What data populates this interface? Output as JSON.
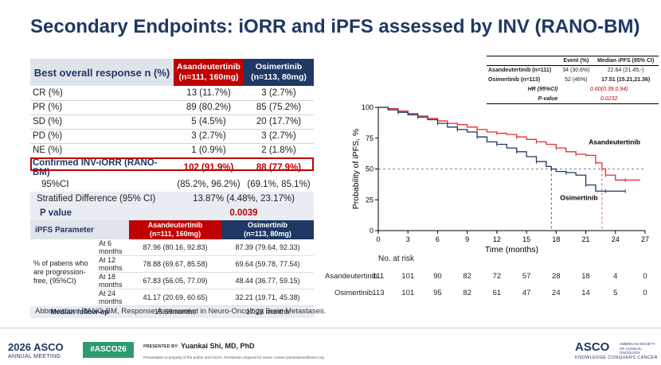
{
  "title": "Secondary Endpoints: iORR and iPFS assessed by INV (RANO-BM)",
  "orr_table": {
    "header_label": "Best overall response n (%)",
    "col1": [
      "Asandeutertinib",
      "(n=111, 160mg)"
    ],
    "col2": [
      "Osimertinib",
      "(n=113, 80mg)"
    ],
    "rows": [
      {
        "label": "CR (%)",
        "a": "13 (11.7%)",
        "b": "3 (2.7%)"
      },
      {
        "label": "PR (%)",
        "a": "89 (80.2%)",
        "b": "85 (75.2%)"
      },
      {
        "label": "SD (%)",
        "a": "5 (4.5%)",
        "b": "20 (17.7%)"
      },
      {
        "label": "PD (%)",
        "a": "3 (2.7%)",
        "b": "3 (2.7%)"
      },
      {
        "label": "NE (%)",
        "a": "1 (0.9%)",
        "b": "2 (1.8%)"
      }
    ],
    "inv_row": {
      "label": "Confirmed INV-iORR (RANO-BM)",
      "a": "102 (91.9%)",
      "b": "88 (77.9%)"
    },
    "ci_row": {
      "label": "95%CI",
      "a": "(85.2%, 96.2%)",
      "b": "(69.1%, 85.1%)"
    },
    "diff_row": {
      "label": "Stratified Difference (95% CI)",
      "value": "13.87% (4.48%, 23.17%)"
    },
    "p_row": {
      "label": "P value",
      "value": "0.0039"
    }
  },
  "ipfs_table": {
    "header_label": "iPFS Parameter",
    "col1": [
      "Asandeutertinib",
      "(n=111, 160mg)"
    ],
    "col2": [
      "Osimertinib",
      "(n=113, 80mg)"
    ],
    "group_label": "% of patiens who are progression-free, (95%CI)",
    "rows": [
      {
        "time": "At 6 months",
        "a": "87.96 (80.16, 92.83)",
        "b": "87.39 (79.64, 92.33)"
      },
      {
        "time": "At 12 months",
        "a": "78.88 (69.67, 85.58)",
        "b": "69.64 (59.78, 77.54)"
      },
      {
        "time": "At 18 months",
        "a": "67.83 (56.05, 77.09)",
        "b": "48.44 (36.77, 59.15)"
      },
      {
        "time": "At 24 months",
        "a": "41.17 (20.69, 60.65)",
        "b": "32.21 (19.71, 45.38)"
      }
    ],
    "followup": {
      "label": "Median follow-up",
      "a": "16.69months",
      "b": "17.28 months"
    }
  },
  "abbreviation": "Abbreviation: RANO-BM, Response Assessment in Neuro-Oncology Brain Metastases.",
  "stats_table": {
    "headers": [
      "",
      "Event (%)",
      "Median iPFS (95% CI)"
    ],
    "rows": [
      {
        "label": "Asandeutertinib (n=111)",
        "event": "34 (30.6%)",
        "median": "22.64 (21.45,-)"
      },
      {
        "label": "Osimertinib (n=113)",
        "event": "52 (46%)",
        "median": "17.51 (15.21,21.36)"
      }
    ],
    "hr": {
      "label": "HR (95%CI)",
      "value": "0.60(0.39,0.94)"
    },
    "p": {
      "label": "P-value",
      "value": "0.0232"
    }
  },
  "chart_data": {
    "type": "line",
    "xlabel": "Time (months)",
    "ylabel": "Probability of iPFS, %",
    "xlim": [
      0,
      27
    ],
    "ylim": [
      0,
      100
    ],
    "x_ticks": [
      0,
      3,
      6,
      9,
      12,
      15,
      18,
      21,
      24,
      27
    ],
    "y_ticks": [
      0,
      25,
      50,
      75,
      100
    ],
    "reference_y": 50,
    "series": [
      {
        "name": "Asandeutertinib",
        "color": "#e03030",
        "median": 22.64,
        "points": [
          [
            0,
            100
          ],
          [
            1,
            99
          ],
          [
            2,
            97
          ],
          [
            3,
            95
          ],
          [
            4,
            93
          ],
          [
            5,
            91
          ],
          [
            6,
            89
          ],
          [
            7,
            87
          ],
          [
            8,
            86
          ],
          [
            9,
            84
          ],
          [
            10,
            82
          ],
          [
            11,
            80
          ],
          [
            12,
            79
          ],
          [
            13,
            78
          ],
          [
            14,
            76
          ],
          [
            15,
            74
          ],
          [
            16,
            72
          ],
          [
            17,
            70
          ],
          [
            18,
            67
          ],
          [
            19,
            64
          ],
          [
            20,
            62
          ],
          [
            21,
            61
          ],
          [
            22,
            55
          ],
          [
            22.64,
            50
          ],
          [
            23,
            45
          ],
          [
            24,
            41
          ],
          [
            25,
            41
          ],
          [
            26.5,
            41
          ]
        ]
      },
      {
        "name": "Osimertinib",
        "color": "#1f3864",
        "median": 17.51,
        "points": [
          [
            0,
            100
          ],
          [
            1,
            98
          ],
          [
            2,
            96
          ],
          [
            3,
            94
          ],
          [
            4,
            92
          ],
          [
            5,
            90
          ],
          [
            6,
            87
          ],
          [
            7,
            84
          ],
          [
            8,
            82
          ],
          [
            9,
            80
          ],
          [
            10,
            76
          ],
          [
            11,
            72
          ],
          [
            12,
            70
          ],
          [
            13,
            67
          ],
          [
            14,
            64
          ],
          [
            15,
            60
          ],
          [
            16,
            56
          ],
          [
            17,
            52
          ],
          [
            17.51,
            50
          ],
          [
            18,
            48
          ],
          [
            19,
            47
          ],
          [
            20,
            45
          ],
          [
            21,
            37
          ],
          [
            22,
            32
          ],
          [
            23,
            32
          ],
          [
            24,
            32
          ],
          [
            25,
            32
          ]
        ]
      }
    ],
    "risk_table": {
      "title": "No. at risk",
      "times": [
        0,
        3,
        6,
        9,
        12,
        15,
        18,
        21,
        24,
        27
      ],
      "rows": [
        {
          "name": "Asandeutertinib",
          "values": [
            "111",
            "101",
            "90",
            "82",
            "72",
            "57",
            "28",
            "18",
            "4",
            "0"
          ]
        },
        {
          "name": "Osimertinib",
          "values": [
            "113",
            "101",
            "95",
            "82",
            "61",
            "47",
            "24",
            "14",
            "5",
            "0"
          ]
        }
      ]
    }
  },
  "footer": {
    "year": "2026",
    "asco": "ASCO",
    "meeting": "ANNUAL MEETING",
    "hashtag": "#ASCO26",
    "presented_by": "PRESENTED BY:",
    "presenter": "Yuankai Shi, MD, PhD",
    "note": "Presentation is property of the author and ASCO. Permission required for reuse; contact permissions@asco.org",
    "logo": "ASCO",
    "society": "AMERICAN SOCIETY OF CLINICAL ONCOLOGY",
    "tagline": "KNOWLEDGE CONQUERS CANCER"
  }
}
